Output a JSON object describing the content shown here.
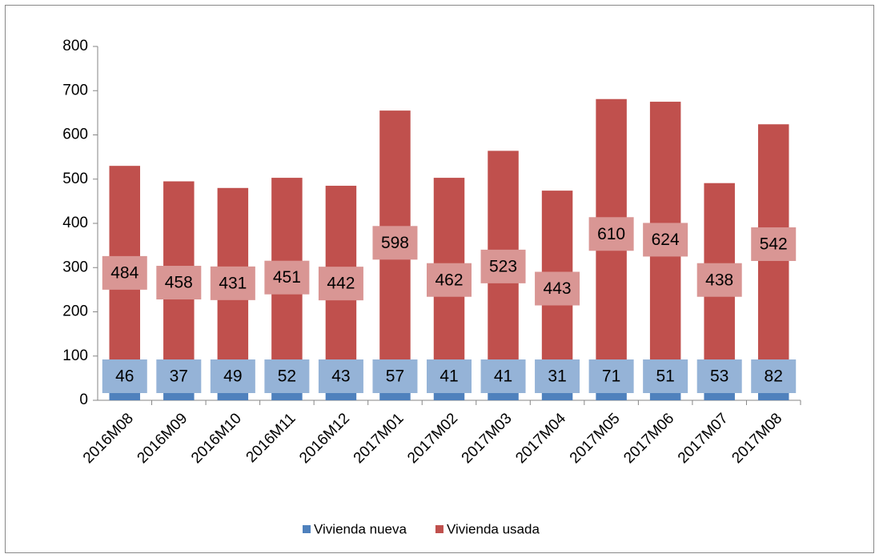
{
  "chart_data": {
    "type": "stacked_bar",
    "categories": [
      "2016M08",
      "2016M09",
      "2016M10",
      "2016M11",
      "2016M12",
      "2017M01",
      "2017M02",
      "2017M03",
      "2017M04",
      "2017M05",
      "2017M06",
      "2017M07",
      "2017M08"
    ],
    "series": [
      {
        "name": "Vivienda nueva",
        "color": "#4f81bd",
        "label_color": "#95b3d7",
        "values": [
          46,
          37,
          49,
          52,
          43,
          57,
          41,
          41,
          31,
          71,
          51,
          53,
          82
        ]
      },
      {
        "name": "Vivienda usada",
        "color": "#c0504d",
        "label_color": "#d99694",
        "values": [
          484,
          458,
          431,
          451,
          442,
          598,
          462,
          523,
          443,
          610,
          624,
          438,
          542
        ]
      }
    ],
    "ylim": [
      0,
      800
    ],
    "yticks": [
      0,
      100,
      200,
      300,
      400,
      500,
      600,
      700,
      800
    ],
    "grid": false
  }
}
